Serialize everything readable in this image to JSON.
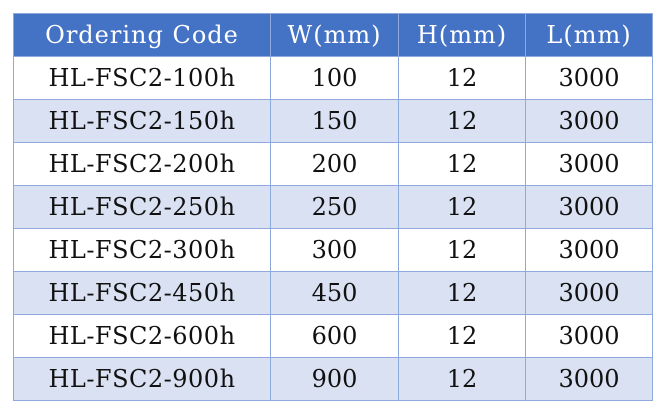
{
  "table": {
    "headers": [
      "Ordering Code",
      "W(mm)",
      "H(mm)",
      "L(mm)"
    ],
    "rows": [
      [
        "HL-FSC2-100h",
        "100",
        "12",
        "3000"
      ],
      [
        "HL-FSC2-150h",
        "150",
        "12",
        "3000"
      ],
      [
        "HL-FSC2-200h",
        "200",
        "12",
        "3000"
      ],
      [
        "HL-FSC2-250h",
        "250",
        "12",
        "3000"
      ],
      [
        "HL-FSC2-300h",
        "300",
        "12",
        "3000"
      ],
      [
        "HL-FSC2-450h",
        "450",
        "12",
        "3000"
      ],
      [
        "HL-FSC2-600h",
        "600",
        "12",
        "3000"
      ],
      [
        "HL-FSC2-900h",
        "900",
        "12",
        "3000"
      ]
    ]
  },
  "colors": {
    "header_bg": "#4472c4",
    "header_text": "#ffffff",
    "stripe_bg": "#d9e1f2",
    "border": "#8ea9db"
  }
}
